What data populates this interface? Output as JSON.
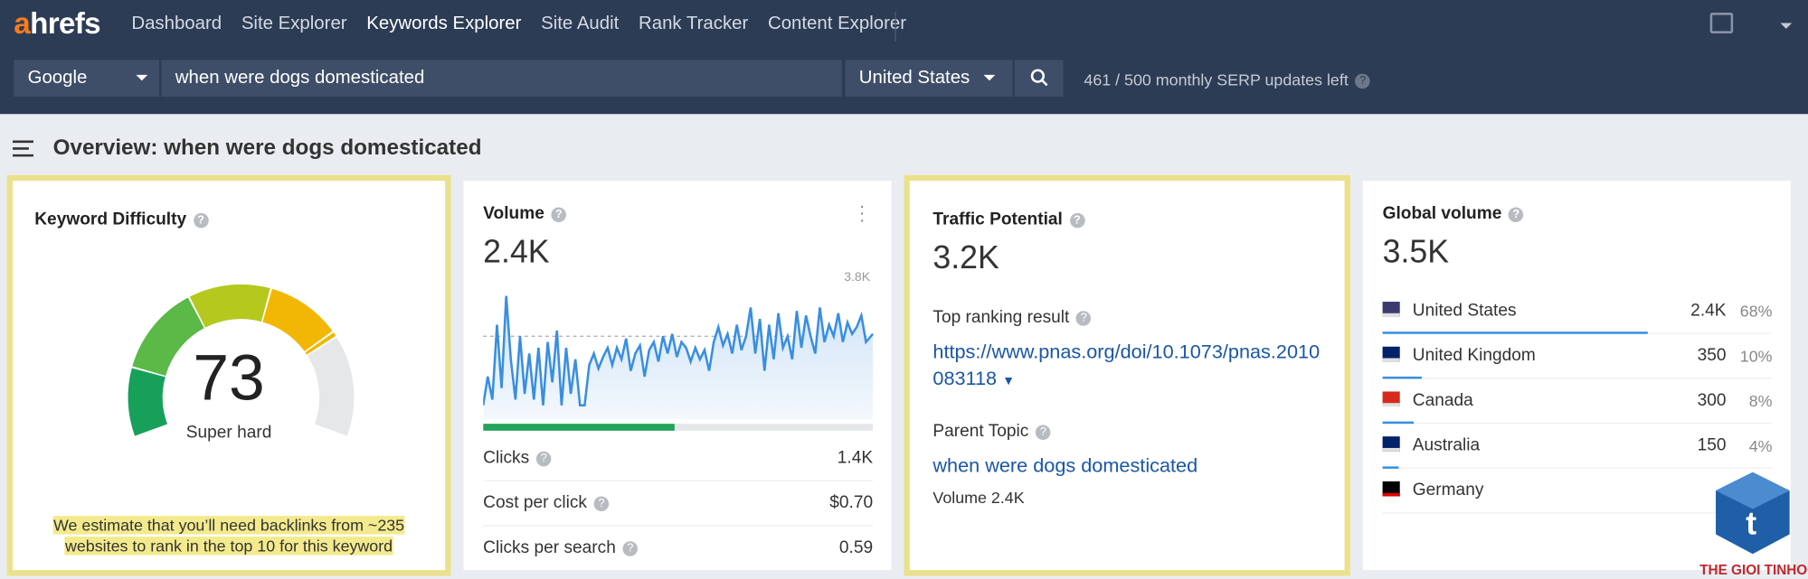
{
  "nav": {
    "logo_a": "a",
    "logo_rest": "hrefs",
    "items": [
      "Dashboard",
      "Site Explorer",
      "Keywords Explorer",
      "Site Audit",
      "Rank Tracker",
      "Content Explorer"
    ]
  },
  "search": {
    "engine": "Google",
    "query": "when were dogs domesticated",
    "country": "United States",
    "updates": "461 / 500 monthly SERP updates left"
  },
  "overview_title": "Overview: when were dogs domesticated",
  "cards": {
    "kd": {
      "title": "Keyword Difficulty",
      "value": "73",
      "label": "Super hard",
      "note": "We estimate that you’ll need backlinks from ~235 websites to rank in the top 10 for this keyword"
    },
    "volume": {
      "title": "Volume",
      "value": "2.4K",
      "chart_max": "3.8K",
      "rows": [
        {
          "label": "Clicks",
          "value": "1.4K"
        },
        {
          "label": "Cost per click",
          "value": "$0.70"
        },
        {
          "label": "Clicks per search",
          "value": "0.59"
        }
      ]
    },
    "traffic": {
      "title": "Traffic Potential",
      "value": "3.2K",
      "top_label": "Top ranking result",
      "url": "https://www.pnas.org/doi/10.1073/pnas.2010083118",
      "parent_label": "Parent Topic",
      "parent": "when were dogs domesticated",
      "parent_volume": "Volume 2.4K"
    },
    "global": {
      "title": "Global volume",
      "value": "3.5K",
      "countries": [
        {
          "name": "United States",
          "volume": "2.4K",
          "share": 68,
          "share_label": "68%"
        },
        {
          "name": "United Kingdom",
          "volume": "350",
          "share": 10,
          "share_label": "10%"
        },
        {
          "name": "Canada",
          "volume": "300",
          "share": 8,
          "share_label": "8%"
        },
        {
          "name": "Australia",
          "volume": "150",
          "share": 4,
          "share_label": "4%"
        },
        {
          "name": "Germany"
        }
      ]
    }
  },
  "watermark": "THE GIOI TINHOC"
}
